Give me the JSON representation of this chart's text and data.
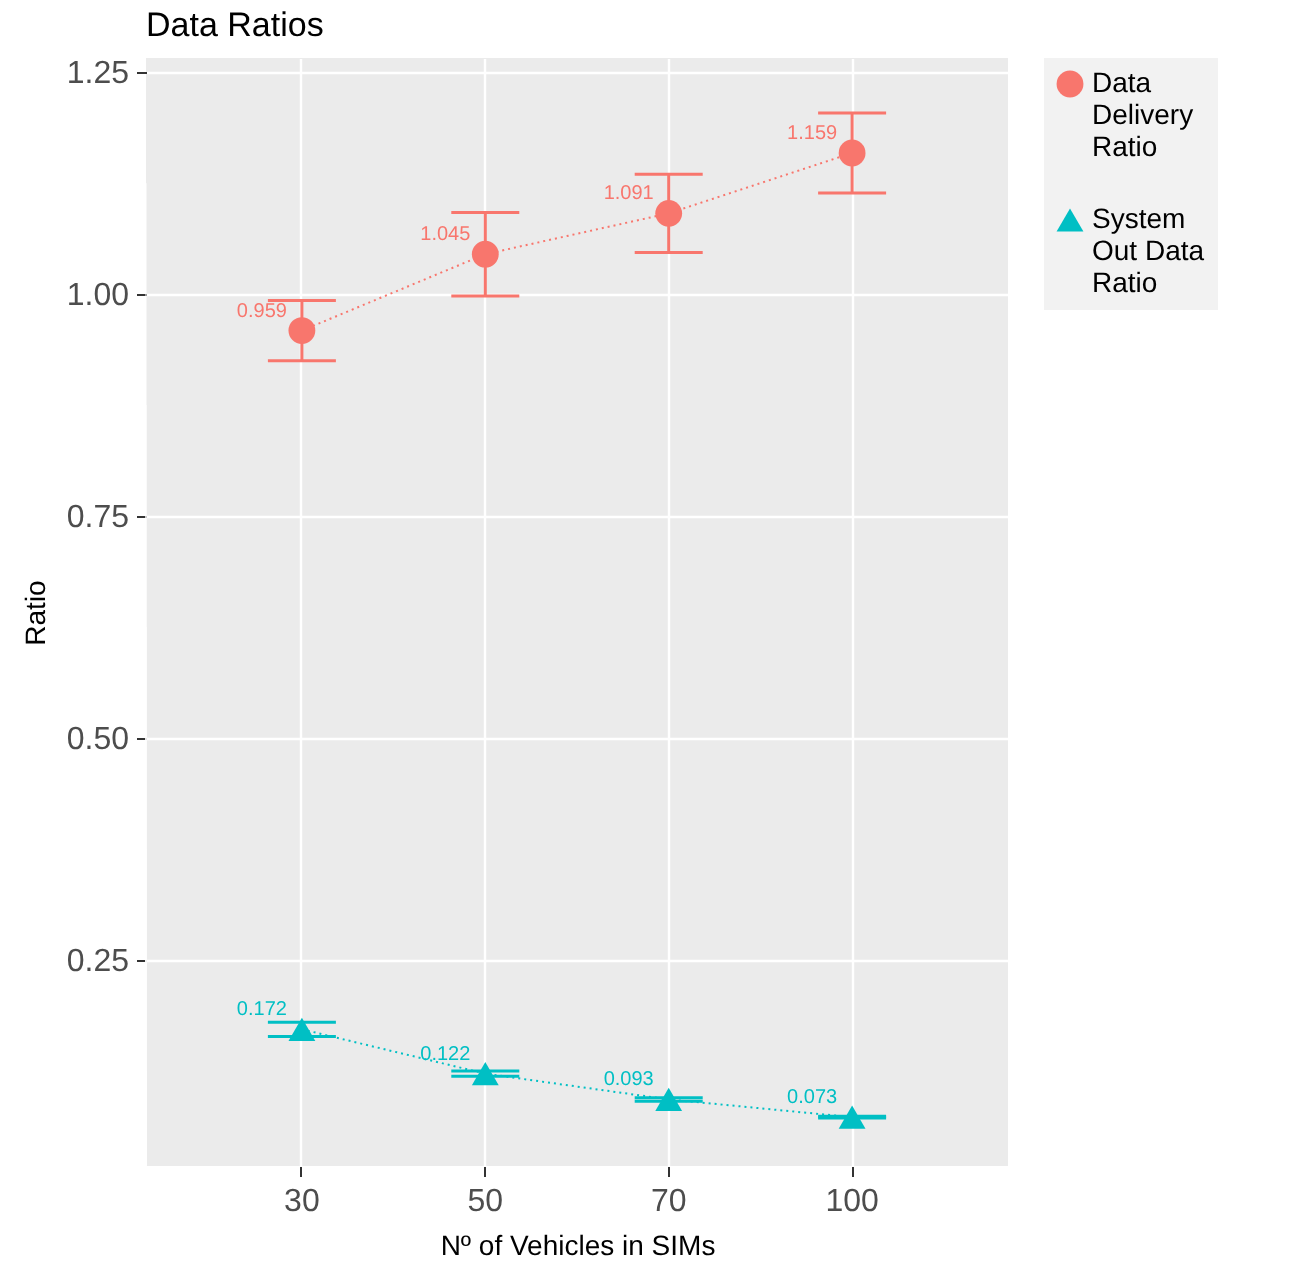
{
  "chart_data": {
    "type": "line",
    "title": "Data Ratios",
    "xlabel": "Nº of Vehicles in SIMs",
    "ylabel": "Ratio",
    "categories": [
      "30",
      "50",
      "70",
      "100"
    ],
    "series": [
      {
        "name": "Data Delivery Ratio",
        "color": "#f8766d",
        "marker": "circle",
        "values": [
          0.959,
          1.045,
          1.091,
          1.159
        ],
        "errors": [
          0.034,
          0.047,
          0.044,
          0.045
        ]
      },
      {
        "name": "System Out Data Ratio",
        "color": "#00bfc4",
        "marker": "triangle",
        "values": [
          0.172,
          0.122,
          0.093,
          0.073
        ],
        "errors": [
          0.008,
          0.003,
          0.002,
          0.001
        ]
      }
    ],
    "ylim": [
      0.018,
      1.266
    ],
    "yticks": [
      0.25,
      {
        "value": 0.5,
        "label": "0.50"
      },
      0.75,
      {
        "value": 1,
        "label": "1.00"
      },
      1.25
    ],
    "line_style": "dotted",
    "data_labels": true,
    "grid": true,
    "legend": "right"
  }
}
